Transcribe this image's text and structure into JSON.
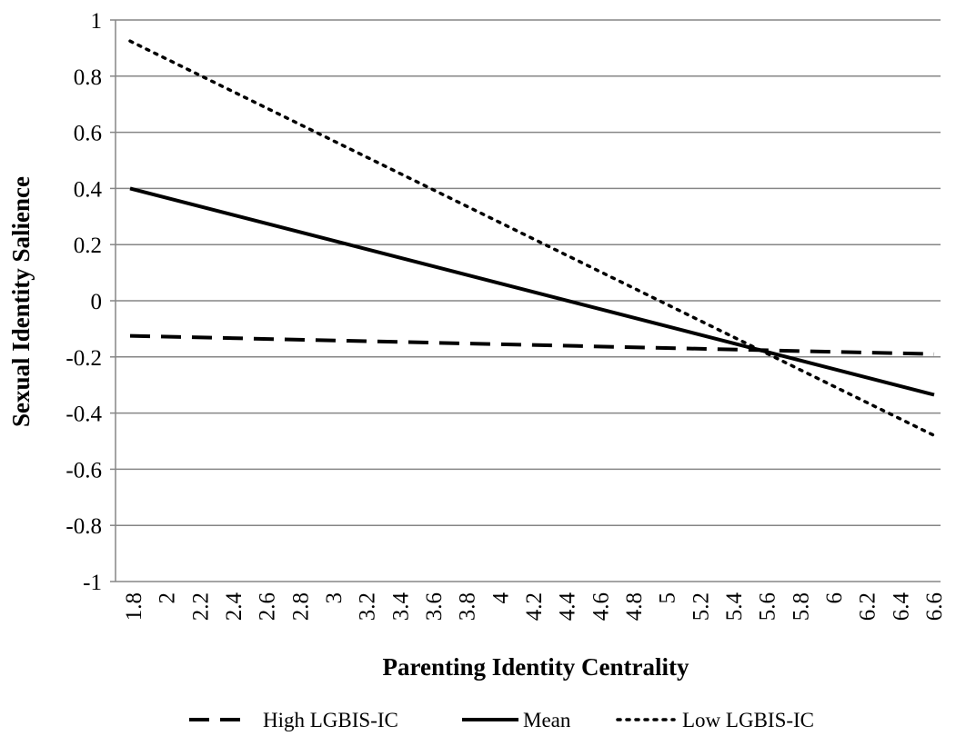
{
  "chart_data": {
    "type": "line",
    "title": "",
    "xlabel": "Parenting Identity Centrality",
    "ylabel": "Sexual Identity Salience",
    "x_tick_labels": [
      "1.8",
      "2",
      "2.2",
      "2.4",
      "2.6",
      "2.8",
      "3",
      "3.2",
      "3.4",
      "3.6",
      "3.8",
      "4",
      "4.2",
      "4.4",
      "4.6",
      "4.8",
      "5",
      "5.2",
      "5.4",
      "5.6",
      "5.8",
      "6",
      "6.2",
      "6.4",
      "6.6"
    ],
    "y_tick_labels": [
      "1",
      "0.8",
      "0.6",
      "0.4",
      "0.2",
      "0",
      "-0.2",
      "-0.4",
      "-0.6",
      "-0.8",
      "-1"
    ],
    "xlim": [
      1.8,
      6.6
    ],
    "ylim": [
      -1,
      1
    ],
    "y_ticks": [
      1,
      0.8,
      0.6,
      0.4,
      0.2,
      0,
      -0.2,
      -0.4,
      -0.6,
      -0.8,
      -1
    ],
    "grid": "horizontal",
    "legend_position": "bottom",
    "series": [
      {
        "name": "High LGBIS-IC",
        "style": "dashed",
        "x": [
          1.8,
          6.6
        ],
        "values": [
          -0.125,
          -0.19
        ]
      },
      {
        "name": "Mean",
        "style": "solid",
        "x": [
          1.8,
          6.6
        ],
        "values": [
          0.4,
          -0.335
        ]
      },
      {
        "name": "Low LGBIS-IC",
        "style": "dotted",
        "x": [
          1.8,
          6.6
        ],
        "values": [
          0.925,
          -0.48
        ]
      }
    ],
    "colors": {
      "line": "#000000",
      "grid": "#868686",
      "axis": "#868686"
    }
  }
}
